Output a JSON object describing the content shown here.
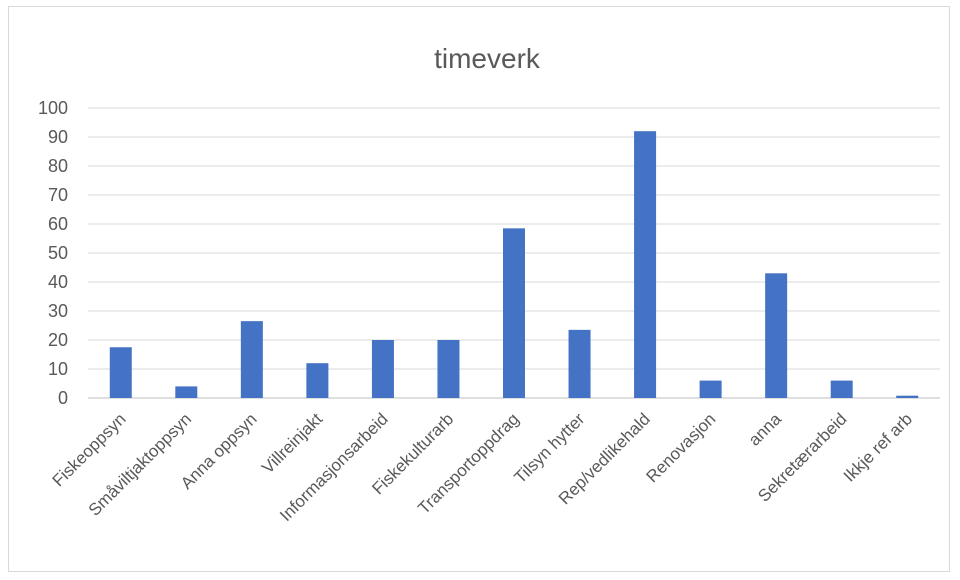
{
  "chart_data": {
    "type": "bar",
    "title": "timeverk",
    "categories": [
      "Fiskeoppsyn",
      "Småviltjaktoppsyn",
      "Anna oppsyn",
      "Villreinjakt",
      "Informasjonsarbeid",
      "Fiskekulturarb",
      "Transportoppdrag",
      "Tilsyn hytter",
      "Rep/vedlikehald",
      "Renovasjon",
      "anna",
      "Sekretærarbeid",
      "Ikkje ref arb"
    ],
    "values": [
      17.5,
      4,
      26.5,
      12,
      20,
      20,
      58.5,
      23.5,
      92,
      6,
      43,
      6,
      0.8
    ],
    "ylim": [
      0,
      100
    ],
    "yticks": [
      0,
      10,
      20,
      30,
      40,
      50,
      60,
      70,
      80,
      90,
      100
    ],
    "grid": true,
    "bar_color": "#4472c4",
    "xlabel": "",
    "ylabel": ""
  }
}
